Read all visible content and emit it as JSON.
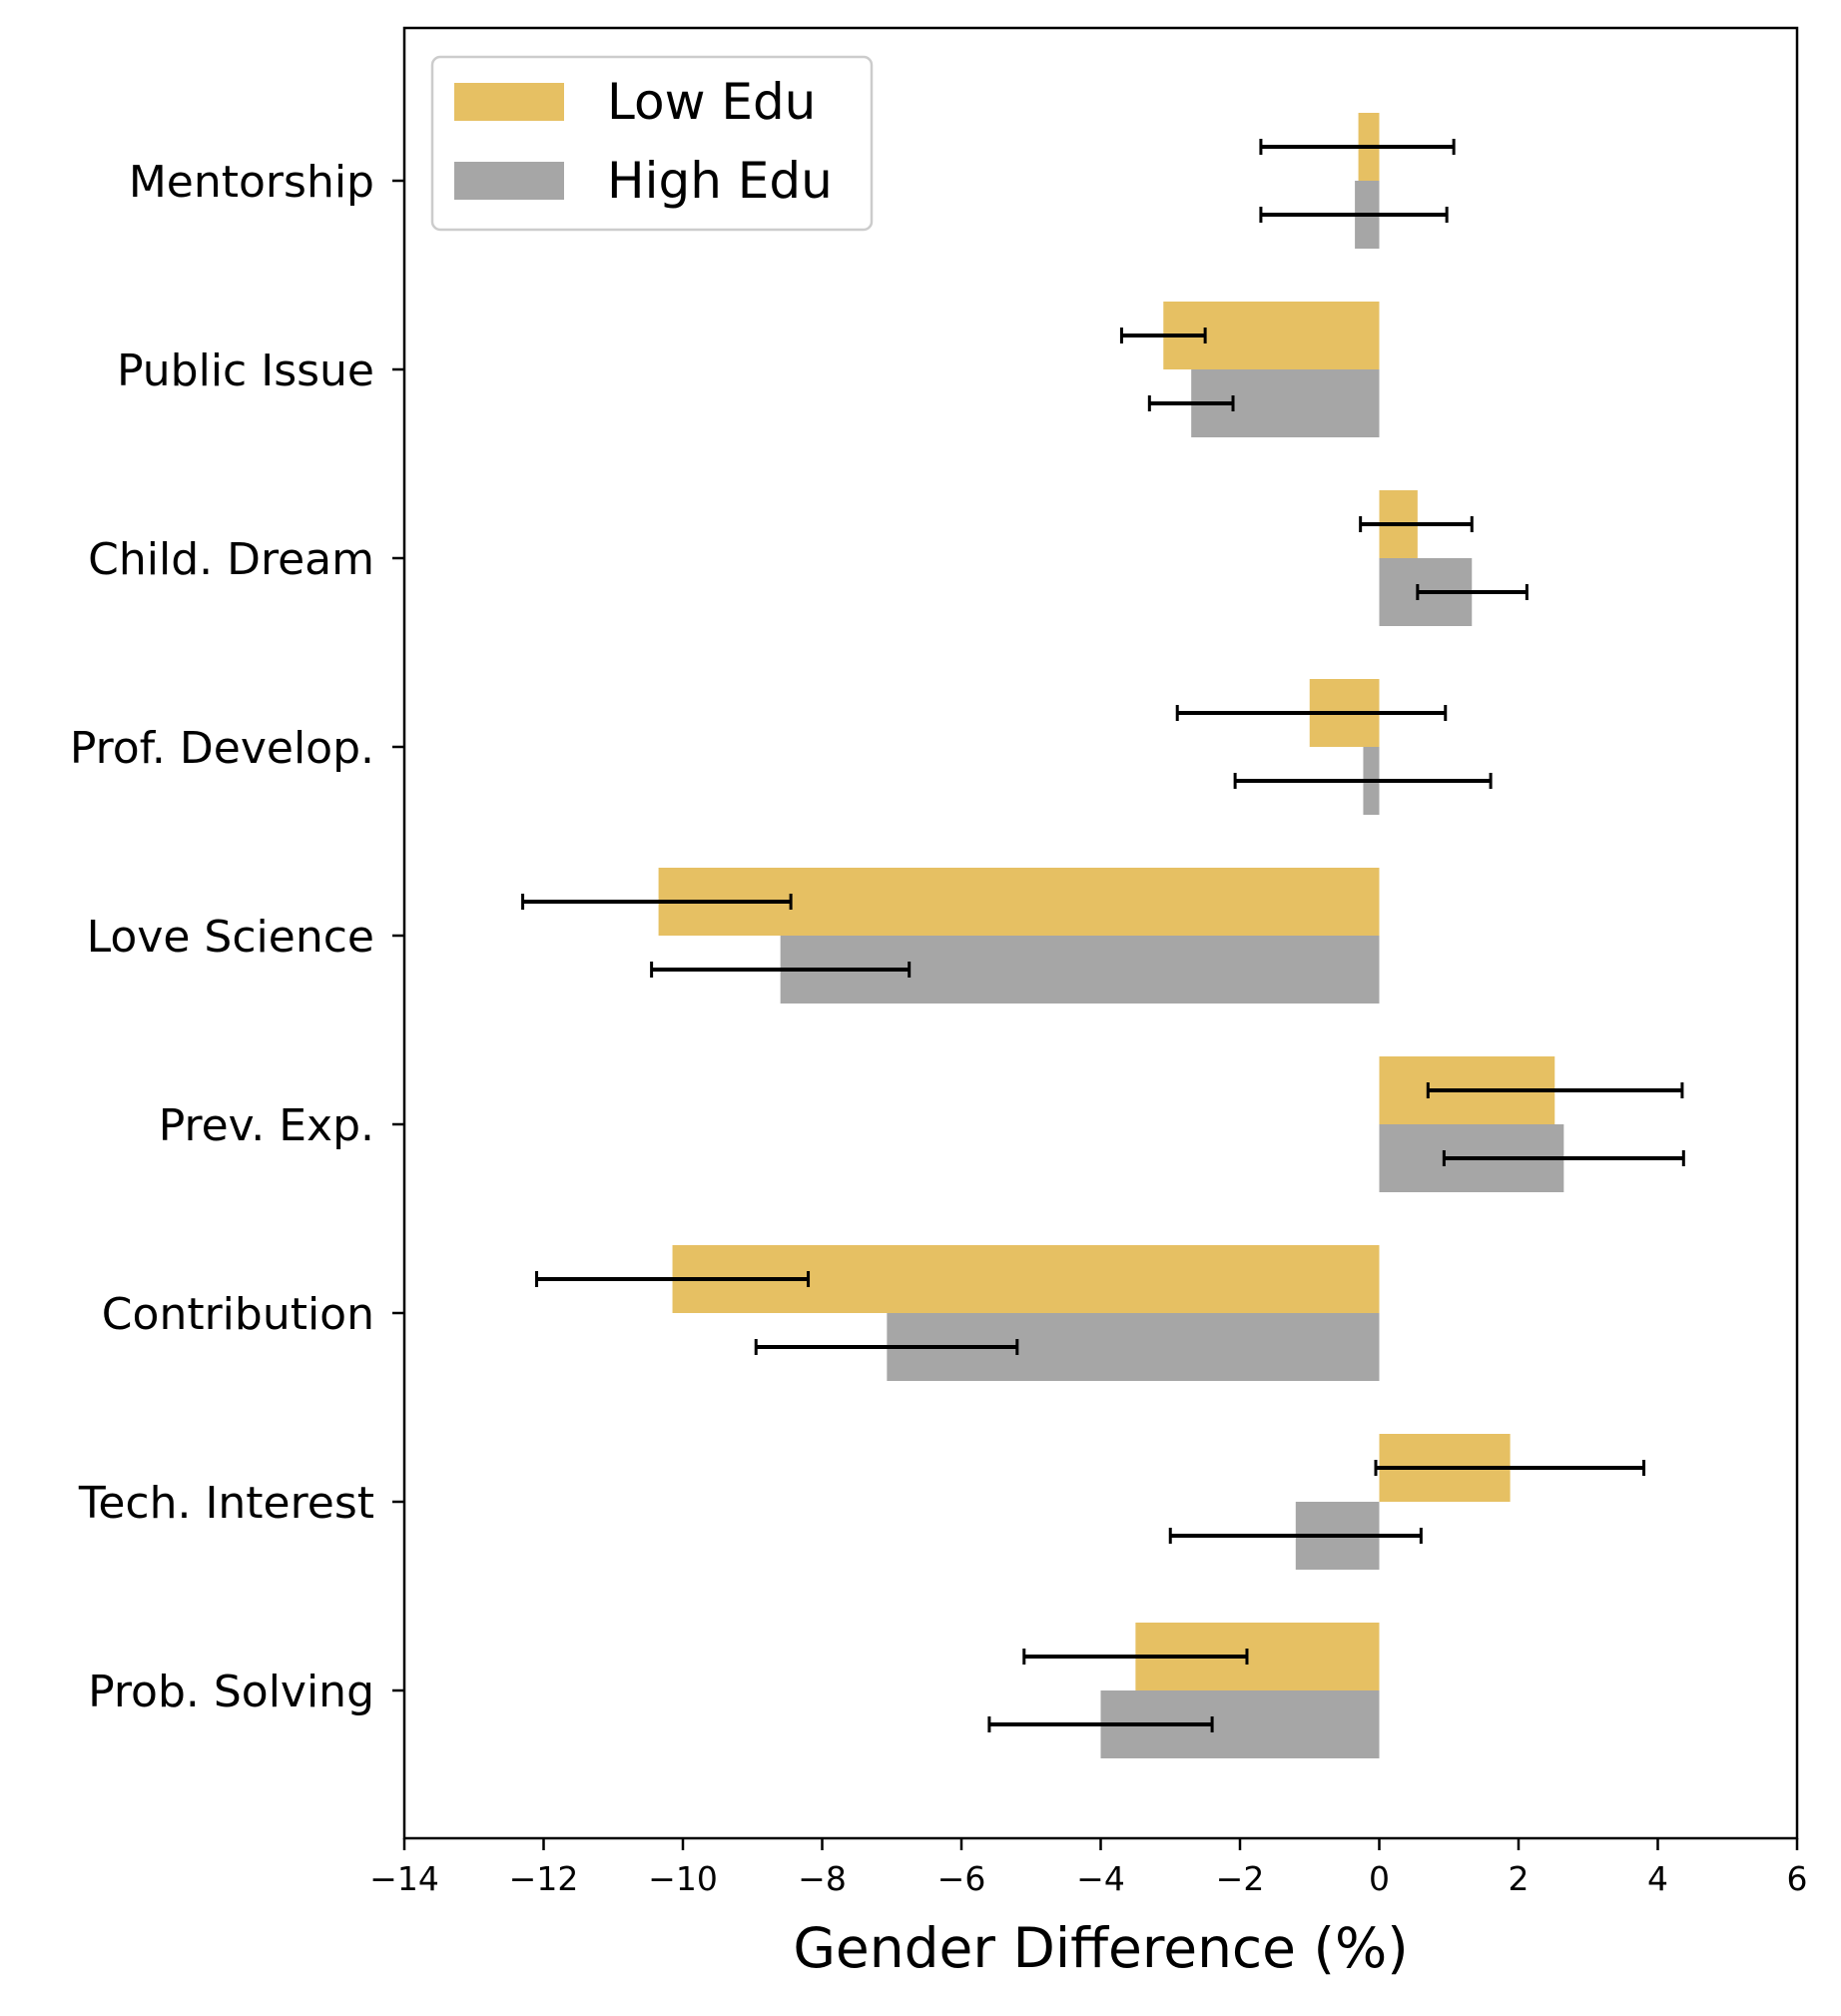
{
  "chart_data": {
    "type": "bar",
    "orientation": "horizontal",
    "title": "",
    "xlabel": "Gender Difference (%)",
    "ylabel": "",
    "xlim": [
      -14,
      6
    ],
    "xticks": [
      -14,
      -12,
      -10,
      -8,
      -6,
      -4,
      -2,
      0,
      2,
      4,
      6
    ],
    "xtick_labels": [
      "−14",
      "−12",
      "−10",
      "−8",
      "−6",
      "−4",
      "−2",
      "0",
      "2",
      "4",
      "6"
    ],
    "grid": false,
    "legend_position": "top-left",
    "categories": [
      "Mentorship",
      "Public Issue",
      "Child. Dream",
      "Prof. Develop.",
      "Love Science",
      "Prev. Exp.",
      "Contribution",
      "Tech. Interest",
      "Prob. Solving"
    ],
    "series": [
      {
        "name": "Low Edu",
        "color": "#e6c063",
        "values": [
          -0.3,
          -3.1,
          0.55,
          -1.0,
          -10.35,
          2.52,
          -10.15,
          1.88,
          -3.5
        ],
        "err_low": [
          -1.7,
          -3.7,
          -0.27,
          -2.9,
          -12.3,
          0.7,
          -12.1,
          -0.05,
          -5.1
        ],
        "err_high": [
          1.07,
          -2.5,
          1.33,
          0.95,
          -8.45,
          4.35,
          -8.2,
          3.8,
          -1.9
        ]
      },
      {
        "name": "High Edu",
        "color": "#a6a6a6",
        "values": [
          -0.35,
          -2.7,
          1.33,
          -0.23,
          -8.6,
          2.65,
          -7.07,
          -1.2,
          -4.0
        ],
        "err_low": [
          -1.7,
          -3.3,
          0.55,
          -2.07,
          -10.45,
          0.93,
          -8.95,
          -3.0,
          -5.6
        ],
        "err_high": [
          0.97,
          -2.1,
          2.12,
          1.6,
          -6.75,
          4.37,
          -5.2,
          0.6,
          -2.4
        ]
      }
    ]
  }
}
